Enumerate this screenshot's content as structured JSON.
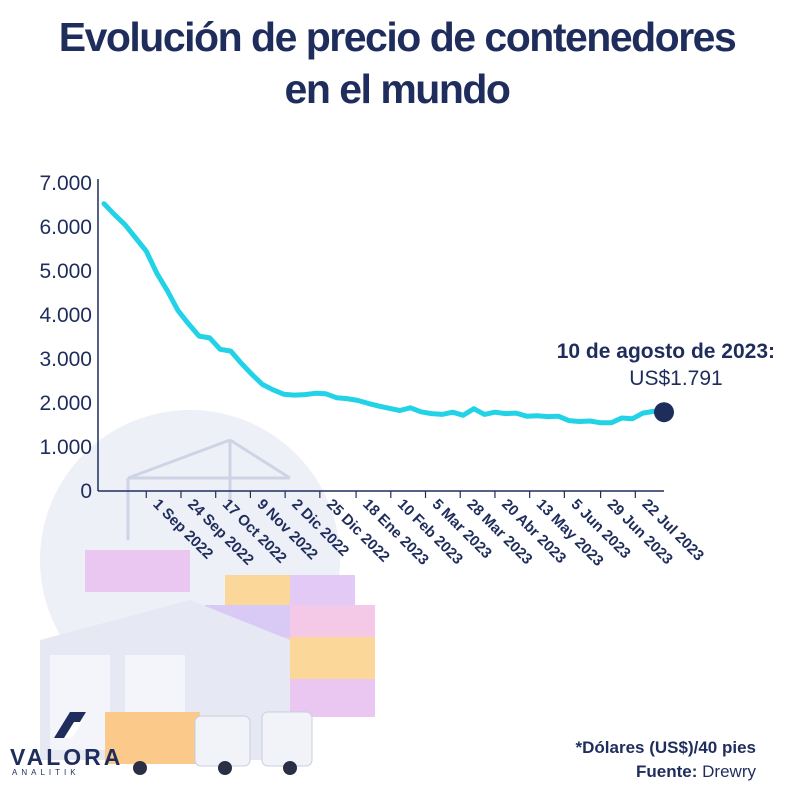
{
  "title": {
    "line1": "Evolución de precio de contenedores",
    "line2": "en el mundo"
  },
  "colors": {
    "title": "#1f2d5c",
    "line": "#22d3e8",
    "endpoint": "#1f2d5c"
  },
  "chart_data": {
    "type": "line",
    "title": "Evolución de precio de contenedores en el mundo",
    "xlabel": "",
    "ylabel": "",
    "ylim": [
      0,
      7000
    ],
    "yticks": [
      "0",
      "1.000",
      "2.000",
      "3.000",
      "4.000",
      "5.000",
      "6.000",
      "7.000"
    ],
    "ytick_values": [
      0,
      1000,
      2000,
      3000,
      4000,
      5000,
      6000,
      7000
    ],
    "xticks": [
      "1 Sep 2022",
      "24 Sep 2022",
      "17 Oct 2022",
      "9 Nov 2022",
      "2 Dic 2022",
      "25 Dic 2022",
      "18 Ene 2023",
      "10 Feb 2023",
      "5 Mar 2023",
      "28 Mar 2023",
      "20 Abr 2023",
      "13 May 2023",
      "5 Jun 2023",
      "29 Jun 2023",
      "22 Jul 2023"
    ],
    "xtick_dates": [
      "2022-09-01",
      "2022-09-24",
      "2022-10-17",
      "2022-11-09",
      "2022-12-02",
      "2022-12-25",
      "2023-01-18",
      "2023-02-10",
      "2023-03-05",
      "2023-03-28",
      "2023-04-20",
      "2023-05-13",
      "2023-06-05",
      "2023-06-29",
      "2023-07-22"
    ],
    "grid": false,
    "series": [
      {
        "name": "",
        "x": [
          "2022-08-04",
          "2022-08-11",
          "2022-08-18",
          "2022-08-25",
          "2022-09-01",
          "2022-09-08",
          "2022-09-15",
          "2022-09-22",
          "2022-09-29",
          "2022-10-06",
          "2022-10-13",
          "2022-10-20",
          "2022-10-27",
          "2022-11-03",
          "2022-11-10",
          "2022-11-17",
          "2022-11-24",
          "2022-12-01",
          "2022-12-08",
          "2022-12-15",
          "2022-12-22",
          "2022-12-29",
          "2023-01-05",
          "2023-01-12",
          "2023-01-19",
          "2023-01-26",
          "2023-02-02",
          "2023-02-09",
          "2023-02-16",
          "2023-02-23",
          "2023-03-02",
          "2023-03-09",
          "2023-03-16",
          "2023-03-23",
          "2023-03-30",
          "2023-04-06",
          "2023-04-13",
          "2023-04-20",
          "2023-04-27",
          "2023-05-04",
          "2023-05-11",
          "2023-05-18",
          "2023-05-25",
          "2023-06-01",
          "2023-06-08",
          "2023-06-15",
          "2023-06-22",
          "2023-06-29",
          "2023-07-06",
          "2023-07-13",
          "2023-07-20",
          "2023-07-27",
          "2023-08-03",
          "2023-08-10"
        ],
        "values": [
          6530,
          6280,
          6050,
          5750,
          5450,
          4950,
          4550,
          4100,
          3800,
          3520,
          3480,
          3220,
          3180,
          2900,
          2650,
          2420,
          2300,
          2200,
          2180,
          2190,
          2220,
          2210,
          2120,
          2100,
          2060,
          1990,
          1930,
          1880,
          1830,
          1890,
          1800,
          1760,
          1740,
          1790,
          1720,
          1870,
          1740,
          1790,
          1760,
          1770,
          1700,
          1710,
          1690,
          1700,
          1600,
          1580,
          1590,
          1550,
          1550,
          1660,
          1640,
          1770,
          1810,
          1791
        ]
      }
    ],
    "annotation": {
      "x": "2023-08-10",
      "value": 1791,
      "title": "10 de agosto de 2023:",
      "label": "US$1.791"
    }
  },
  "footer": {
    "note": "*Dólares (US$)/40 pies",
    "source_label": "Fuente:",
    "source_value": "Drewry"
  },
  "logo": {
    "name": "VALORA",
    "tagline": "ANALITIK"
  }
}
